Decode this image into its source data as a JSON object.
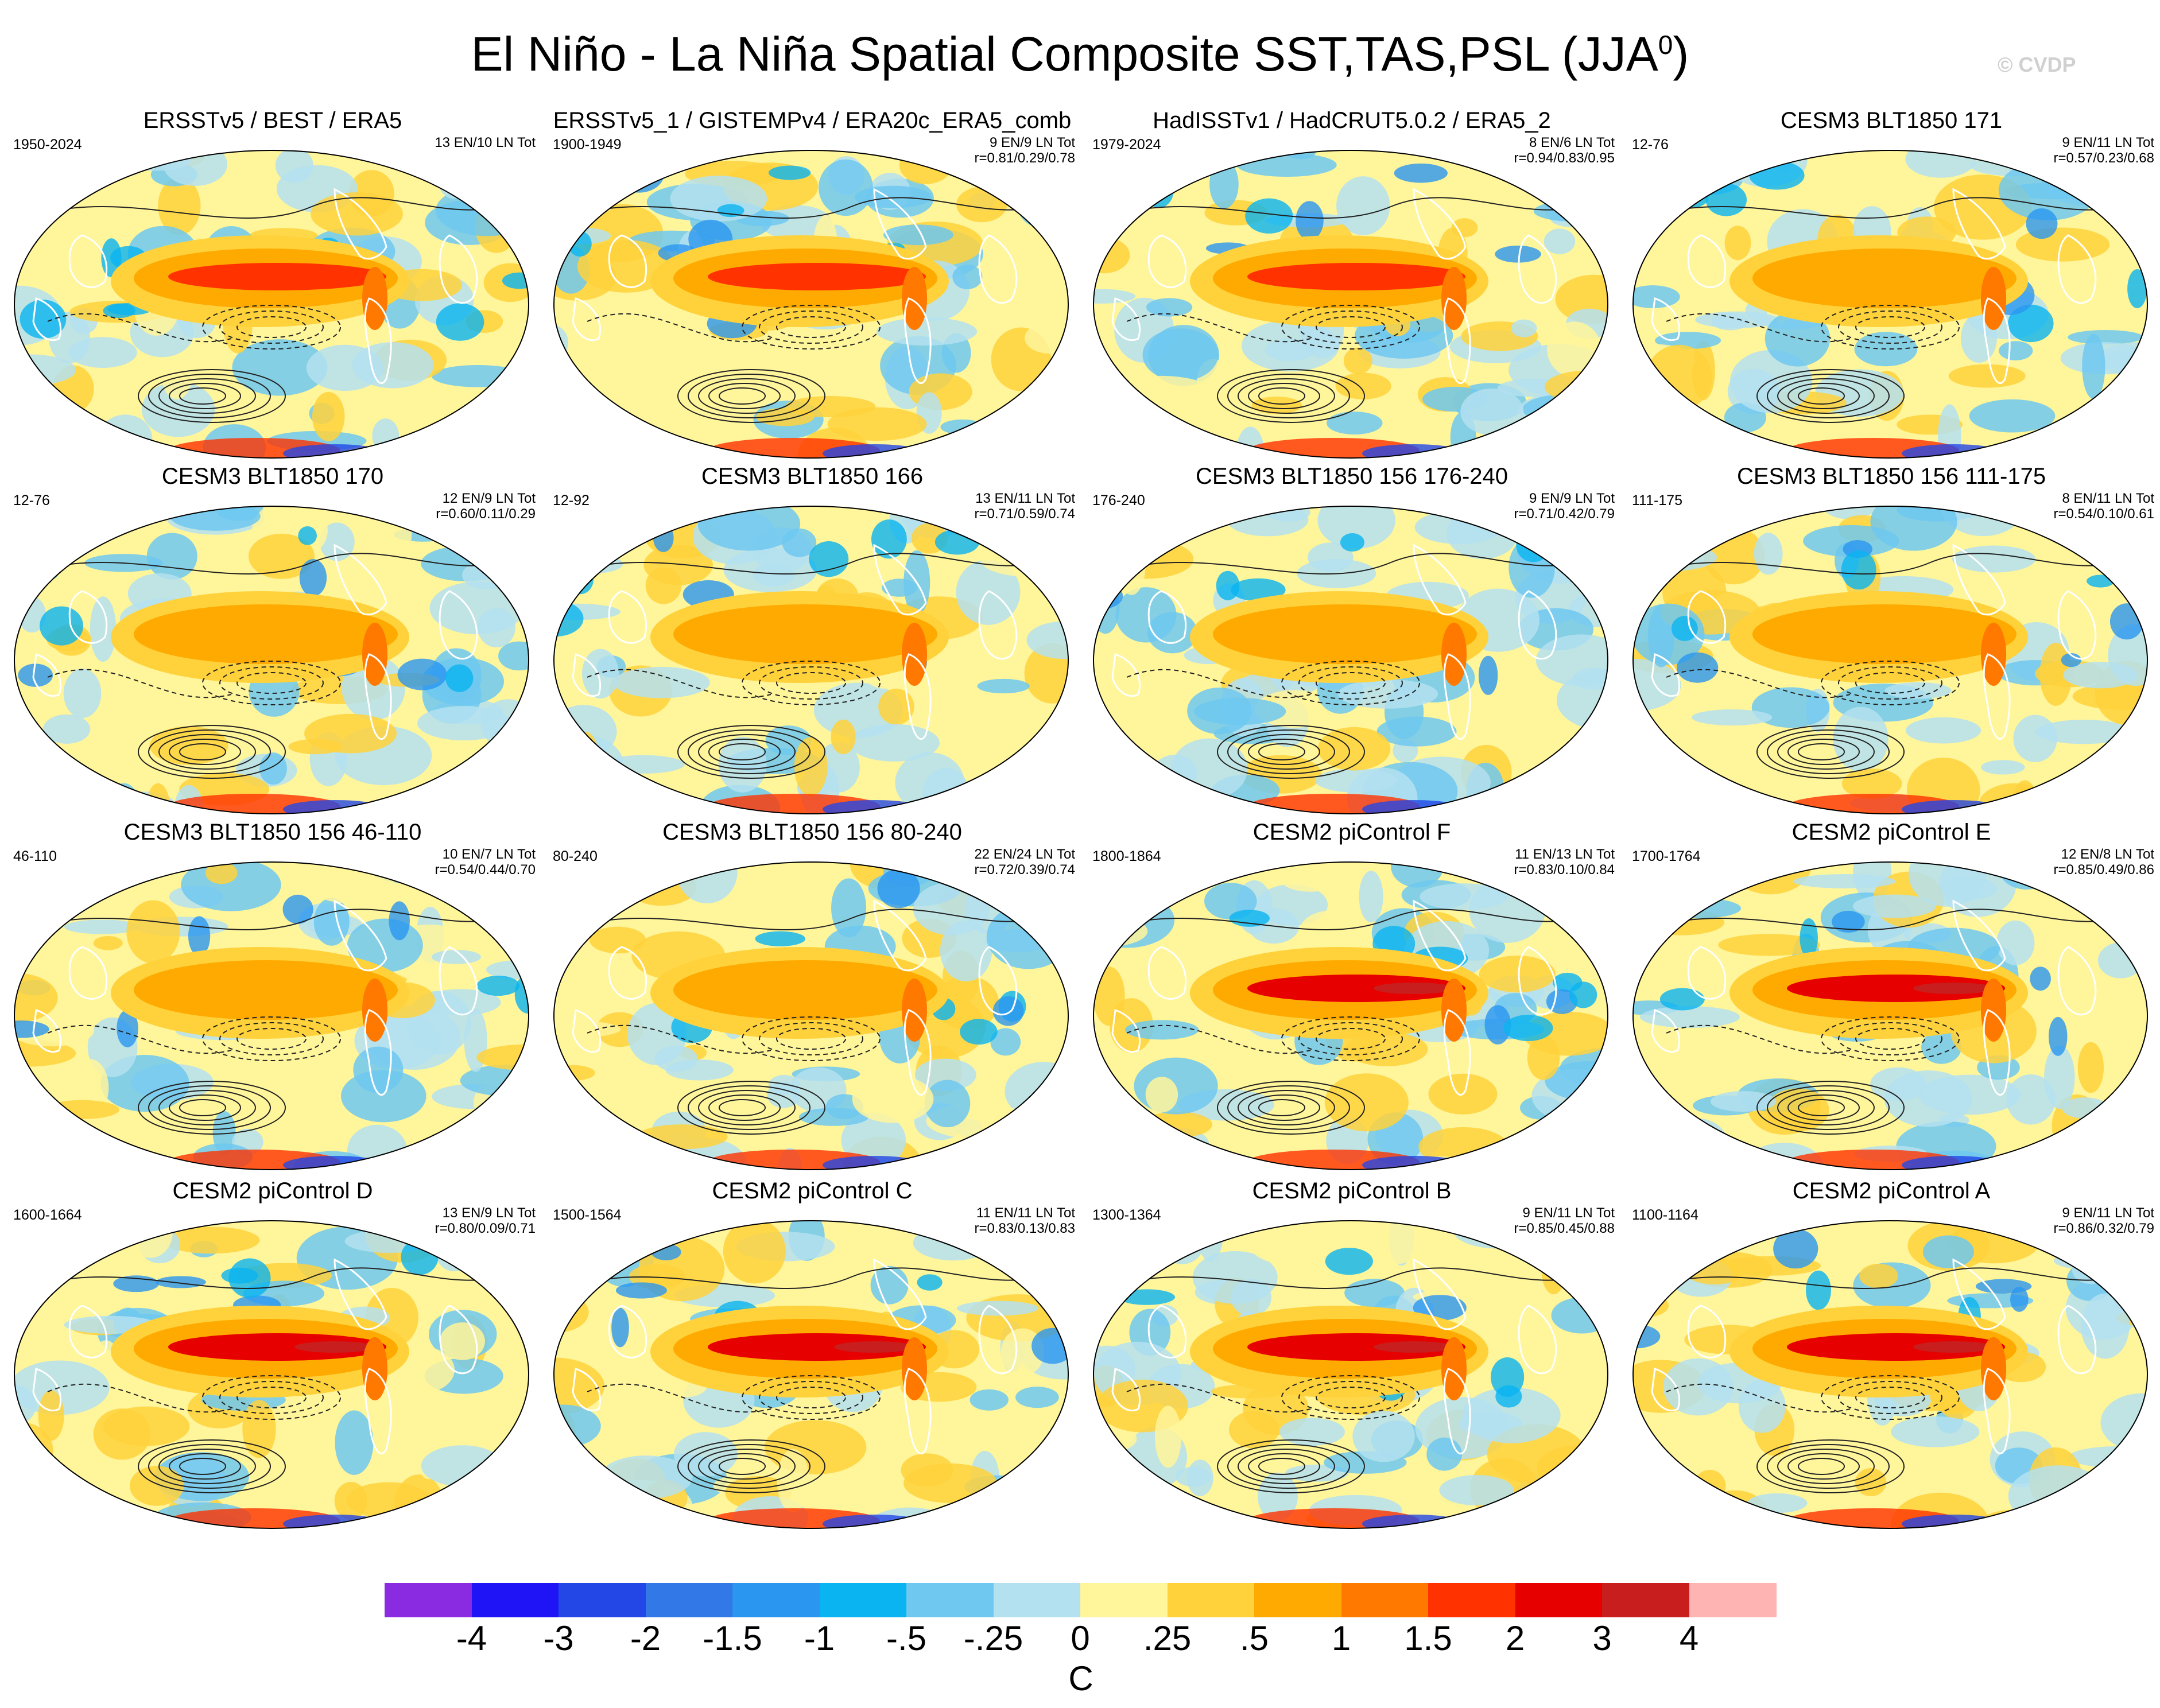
{
  "header": {
    "title": "El Niño - La Niña Spatial Composite SST,TAS,PSL (JJA",
    "title_superscript": "0",
    "title_close": ")",
    "watermark": "© CVDP"
  },
  "panels": [
    {
      "title": "ERSSTv5 / BEST / ERA5",
      "years": "1950-2024",
      "count": "13 EN/10 LN Tot",
      "corr": "",
      "pattern": "obs",
      "seed": 3
    },
    {
      "title": "ERSSTv5_1 / GISTEMPv4 / ERA20c_ERA5_comb",
      "years": "1900-1949",
      "count": "9 EN/9 LN Tot",
      "corr": "r=0.81/0.29/0.78",
      "pattern": "obs",
      "seed": 7
    },
    {
      "title": "HadISSTv1 / HadCRUT5.0.2 / ERA5_2",
      "years": "1979-2024",
      "count": "8 EN/6 LN Tot",
      "corr": "r=0.94/0.83/0.95",
      "pattern": "obs",
      "seed": 11
    },
    {
      "title": "CESM3 BLT1850 171",
      "years": "12-76",
      "count": "9 EN/11 LN Tot",
      "corr": "r=0.57/0.23/0.68",
      "pattern": "weak",
      "seed": 13
    },
    {
      "title": "CESM3 BLT1850 170",
      "years": "12-76",
      "count": "12 EN/9 LN Tot",
      "corr": "r=0.60/0.11/0.29",
      "pattern": "weak",
      "seed": 17
    },
    {
      "title": "CESM3 BLT1850 166",
      "years": "12-92",
      "count": "13 EN/11 LN Tot",
      "corr": "r=0.71/0.59/0.74",
      "pattern": "weak",
      "seed": 19
    },
    {
      "title": "CESM3 BLT1850 156 176-240",
      "years": "176-240",
      "count": "9 EN/9 LN Tot",
      "corr": "r=0.71/0.42/0.79",
      "pattern": "weak",
      "seed": 23
    },
    {
      "title": "CESM3 BLT1850 156 111-175",
      "years": "111-175",
      "count": "8 EN/11 LN Tot",
      "corr": "r=0.54/0.10/0.61",
      "pattern": "weak",
      "seed": 29
    },
    {
      "title": "CESM3 BLT1850 156 46-110",
      "years": "46-110",
      "count": "10 EN/7 LN Tot",
      "corr": "r=0.54/0.44/0.70",
      "pattern": "weak",
      "seed": 31
    },
    {
      "title": "CESM3 BLT1850 156 80-240",
      "years": "80-240",
      "count": "22 EN/24 LN Tot",
      "corr": "r=0.72/0.39/0.74",
      "pattern": "weak",
      "seed": 37
    },
    {
      "title": "CESM2 piControl F",
      "years": "1800-1864",
      "count": "11 EN/13 LN Tot",
      "corr": "r=0.83/0.10/0.84",
      "pattern": "strong",
      "seed": 41
    },
    {
      "title": "CESM2 piControl E",
      "years": "1700-1764",
      "count": "12 EN/8 LN Tot",
      "corr": "r=0.85/0.49/0.86",
      "pattern": "strong",
      "seed": 43
    },
    {
      "title": "CESM2 piControl D",
      "years": "1600-1664",
      "count": "13 EN/9 LN Tot",
      "corr": "r=0.80/0.09/0.71",
      "pattern": "strong",
      "seed": 47
    },
    {
      "title": "CESM2 piControl C",
      "years": "1500-1564",
      "count": "11 EN/11 LN Tot",
      "corr": "r=0.83/0.13/0.83",
      "pattern": "strong",
      "seed": 53
    },
    {
      "title": "CESM2 piControl B",
      "years": "1300-1364",
      "count": "9 EN/11 LN Tot",
      "corr": "r=0.85/0.45/0.88",
      "pattern": "strong",
      "seed": 59
    },
    {
      "title": "CESM2 piControl A",
      "years": "1100-1164",
      "count": "9 EN/11 LN Tot",
      "corr": "r=0.86/0.32/0.79",
      "pattern": "strong",
      "seed": 61
    }
  ],
  "colorbar": {
    "unit": "C",
    "colors": [
      "#8a2be2",
      "#1e14f5",
      "#2346e6",
      "#3278e6",
      "#2a96f0",
      "#0ab4f0",
      "#6ec8f0",
      "#b4e1f0",
      "#fff59b",
      "#ffd23c",
      "#ffaa00",
      "#ff7800",
      "#ff3200",
      "#e60000",
      "#c81e1e",
      "#ffb4b4"
    ],
    "tick_labels": [
      "-4",
      "-3",
      "-2",
      "-1.5",
      "-1",
      "-.5",
      "-.25",
      "0",
      ".25",
      ".5",
      "1",
      "1.5",
      "2",
      "3",
      "4"
    ]
  }
}
